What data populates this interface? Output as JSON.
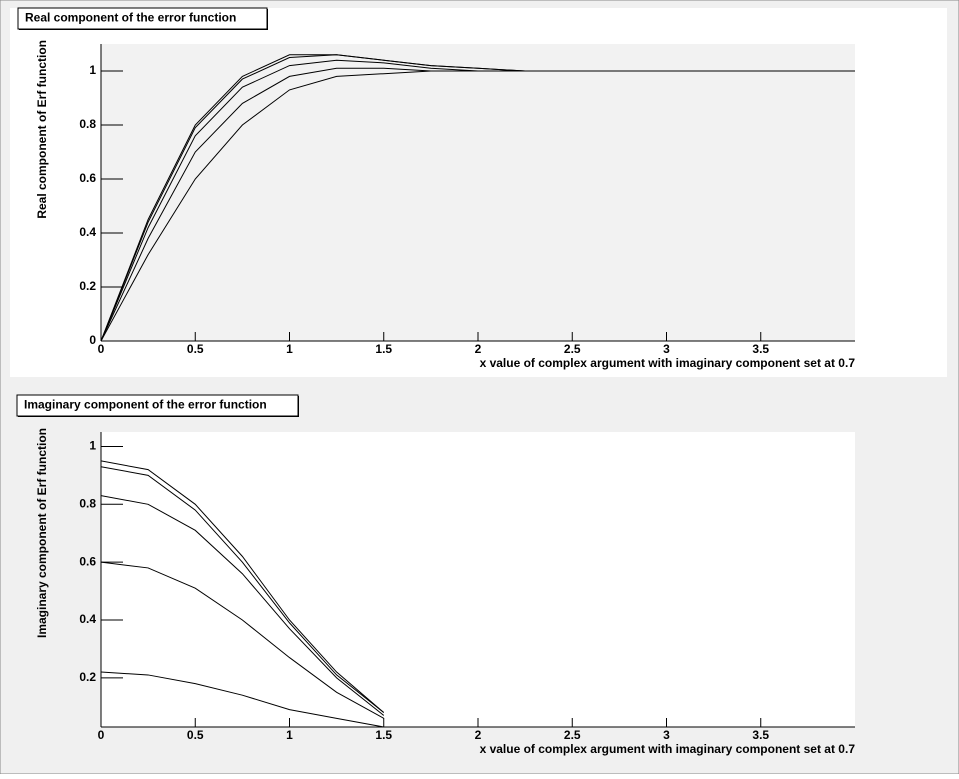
{
  "chart_data": [
    {
      "type": "line",
      "title": "Real component of the error function",
      "xlabel": "x value of complex argument with imaginary component set at 0.7",
      "ylabel": "Real component of Erf function",
      "xlim": [
        0,
        4
      ],
      "ylim": [
        0,
        1.1
      ],
      "xticks": [
        0,
        0.5,
        1,
        1.5,
        2,
        2.5,
        3,
        3.5
      ],
      "yticks": [
        0,
        0.2,
        0.4,
        0.6,
        0.8,
        1
      ],
      "color": "#000000",
      "series": [
        {
          "x": [
            0,
            0.25,
            0.5,
            0.75,
            1,
            1.25,
            1.5,
            1.75,
            2,
            2.25
          ],
          "values": [
            0,
            0.45,
            0.8,
            0.98,
            1.06,
            1.06,
            1.04,
            1.02,
            1.01,
            1.0
          ]
        },
        {
          "x": [
            0,
            0.25,
            0.5,
            0.75,
            1,
            1.25,
            1.5,
            1.75,
            2,
            2.25
          ],
          "values": [
            0,
            0.44,
            0.79,
            0.97,
            1.05,
            1.06,
            1.04,
            1.02,
            1.01,
            1.0
          ]
        },
        {
          "x": [
            0,
            0.25,
            0.5,
            0.75,
            1,
            1.25,
            1.5,
            1.75,
            2,
            2.25
          ],
          "values": [
            0,
            0.42,
            0.76,
            0.94,
            1.02,
            1.04,
            1.03,
            1.01,
            1.0,
            1.0
          ]
        },
        {
          "x": [
            0,
            0.25,
            0.5,
            0.75,
            1,
            1.25,
            1.5,
            1.75,
            2,
            2.25
          ],
          "values": [
            0,
            0.38,
            0.7,
            0.88,
            0.98,
            1.01,
            1.01,
            1.0,
            1.0,
            1.0
          ]
        },
        {
          "x": [
            0,
            0.25,
            0.5,
            0.75,
            1,
            1.25,
            1.5,
            1.75,
            2,
            2.25,
            4
          ],
          "values": [
            0,
            0.32,
            0.6,
            0.8,
            0.93,
            0.98,
            0.99,
            1.0,
            1.0,
            1.0,
            1.0
          ]
        }
      ]
    },
    {
      "type": "line",
      "title": "Imaginary component of the error function",
      "xlabel": "x value of complex argument with imaginary component set at 0.7",
      "ylabel": "Imaginary component of Erf function",
      "xlim": [
        0,
        4
      ],
      "ylim": [
        0.03,
        1.05
      ],
      "xticks": [
        0,
        0.5,
        1,
        1.5,
        2,
        2.5,
        3,
        3.5
      ],
      "yticks": [
        0.2,
        0.4,
        0.6,
        0.8,
        1
      ],
      "color": "#000000",
      "series": [
        {
          "x": [
            0,
            0.25,
            0.5,
            0.75,
            1,
            1.25,
            1.5
          ],
          "values": [
            0.95,
            0.92,
            0.8,
            0.62,
            0.4,
            0.22,
            0.08
          ]
        },
        {
          "x": [
            0,
            0.25,
            0.5,
            0.75,
            1,
            1.25,
            1.5
          ],
          "values": [
            0.93,
            0.9,
            0.78,
            0.6,
            0.39,
            0.21,
            0.08
          ]
        },
        {
          "x": [
            0,
            0.25,
            0.5,
            0.75,
            1,
            1.25,
            1.5
          ],
          "values": [
            0.83,
            0.8,
            0.71,
            0.56,
            0.37,
            0.2,
            0.07
          ]
        },
        {
          "x": [
            0,
            0.25,
            0.5,
            0.75,
            1,
            1.25,
            1.5
          ],
          "values": [
            0.6,
            0.58,
            0.51,
            0.4,
            0.27,
            0.15,
            0.06
          ]
        },
        {
          "x": [
            0,
            0.25,
            0.5,
            0.75,
            1,
            1.25,
            1.5
          ],
          "values": [
            0.22,
            0.21,
            0.18,
            0.14,
            0.09,
            0.06,
            0.03
          ]
        }
      ]
    }
  ]
}
